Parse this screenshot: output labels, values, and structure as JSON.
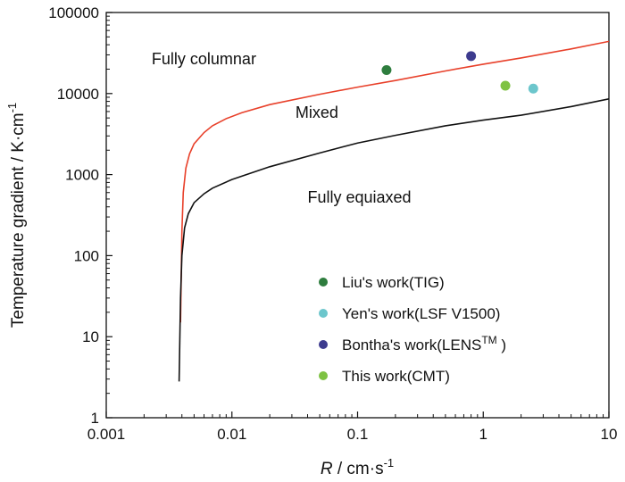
{
  "chart_data": {
    "type": "scatter",
    "title": "",
    "xlabel": {
      "var": "R",
      "unit": " / cm·s",
      "exp": "-1"
    },
    "ylabel": {
      "text": "Temperature gradient / K·cm",
      "exp": "-1"
    },
    "xscale": "log",
    "yscale": "log",
    "xlim": [
      0.001,
      10
    ],
    "ylim": [
      1,
      100000
    ],
    "grid": false,
    "legend_position": "lower-right",
    "x_ticks": [
      {
        "value": 0.001,
        "label": "0.001"
      },
      {
        "value": 0.01,
        "label": "0.01"
      },
      {
        "value": 0.1,
        "label": "0.1"
      },
      {
        "value": 1,
        "label": "1"
      },
      {
        "value": 10,
        "label": "10"
      }
    ],
    "y_ticks": [
      {
        "value": 1,
        "label": "1"
      },
      {
        "value": 10,
        "label": "10"
      },
      {
        "value": 100,
        "label": "100"
      },
      {
        "value": 1000,
        "label": "1000"
      },
      {
        "value": 10000,
        "label": "10000"
      },
      {
        "value": 100000,
        "label": "100000"
      }
    ],
    "boundary_curves": [
      {
        "id": "columnar-boundary",
        "color": "#e8402a",
        "points": [
          [
            0.0039,
            15
          ],
          [
            0.004,
            200
          ],
          [
            0.0041,
            600
          ],
          [
            0.0043,
            1200
          ],
          [
            0.0046,
            1800
          ],
          [
            0.005,
            2400
          ],
          [
            0.006,
            3300
          ],
          [
            0.007,
            4000
          ],
          [
            0.009,
            4900
          ],
          [
            0.012,
            5800
          ],
          [
            0.02,
            7300
          ],
          [
            0.05,
            9800
          ],
          [
            0.1,
            12000
          ],
          [
            0.2,
            14500
          ],
          [
            0.5,
            19000
          ],
          [
            1,
            23000
          ],
          [
            2,
            27500
          ],
          [
            5,
            35500
          ],
          [
            10,
            44000
          ]
        ]
      },
      {
        "id": "equiaxed-boundary",
        "color": "#111111",
        "points": [
          [
            0.0038,
            2.8
          ],
          [
            0.0039,
            30
          ],
          [
            0.004,
            100
          ],
          [
            0.0042,
            220
          ],
          [
            0.0045,
            330
          ],
          [
            0.005,
            450
          ],
          [
            0.006,
            580
          ],
          [
            0.007,
            680
          ],
          [
            0.01,
            870
          ],
          [
            0.02,
            1250
          ],
          [
            0.05,
            1850
          ],
          [
            0.1,
            2450
          ],
          [
            0.2,
            3050
          ],
          [
            0.5,
            4000
          ],
          [
            1,
            4700
          ],
          [
            2,
            5400
          ],
          [
            5,
            6900
          ],
          [
            10,
            8600
          ]
        ]
      }
    ],
    "series": [
      {
        "name": "Liu's work(TIG)",
        "color": "#2e7d3e",
        "points": [
          [
            0.17,
            19500
          ]
        ]
      },
      {
        "name": "Yen's work(LSF V1500)",
        "color": "#6cc6cc",
        "points": [
          [
            2.5,
            11500
          ]
        ]
      },
      {
        "name": "Bontha's work(LENS",
        "name_sup": "TM",
        "name_suffix": " )",
        "color": "#3d3b8e",
        "points": [
          [
            0.8,
            29000
          ]
        ]
      },
      {
        "name": "This work(CMT)",
        "color": "#7ec243",
        "points": [
          [
            1.5,
            12500
          ]
        ]
      }
    ],
    "annotations": [
      {
        "text": "Fully columnar",
        "x": 0.0023,
        "y": 23000
      },
      {
        "text": "Mixed",
        "x": 0.032,
        "y": 5000
      },
      {
        "text": "Fully equiaxed",
        "x": 0.04,
        "y": 450
      }
    ]
  }
}
